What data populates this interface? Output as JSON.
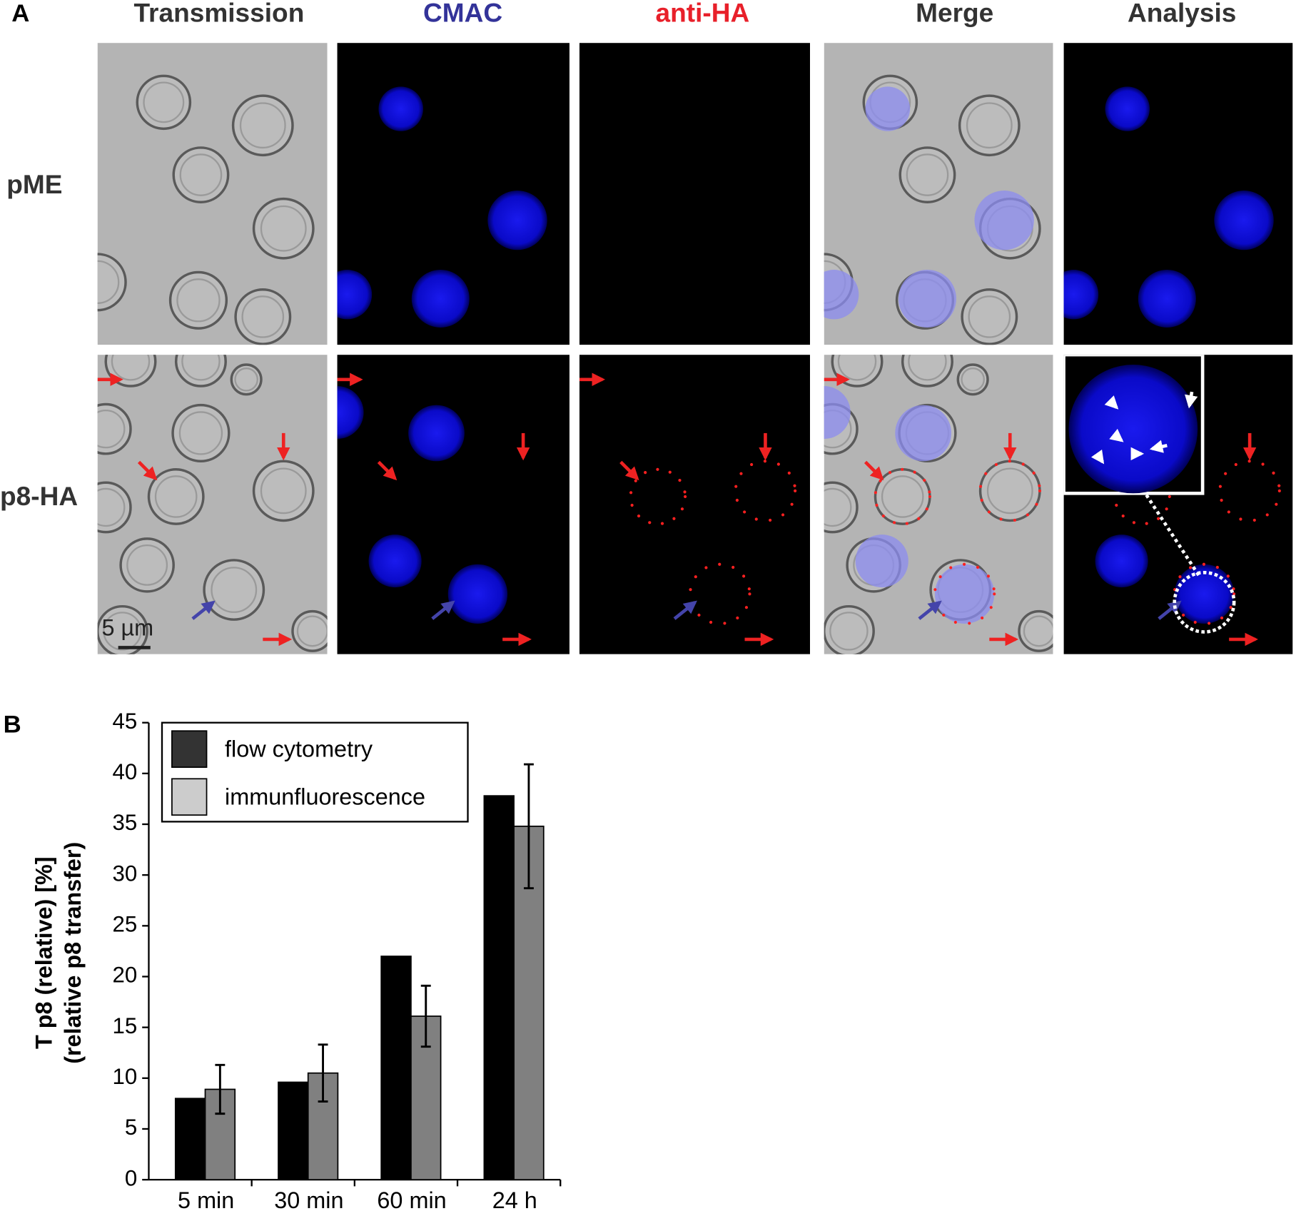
{
  "panel_a": {
    "label": "A",
    "columns": [
      "Transmission",
      "CMAC",
      "anti-HA",
      "Merge",
      "Analysis"
    ],
    "rows": [
      "pME",
      "p8-HA"
    ],
    "scale_bar": "5 µm"
  },
  "chart_data": {
    "type": "bar",
    "label": "B",
    "ylabel": [
      "T p8 (relative) [%]",
      "(relative p8 transfer)"
    ],
    "categories": [
      "5 min",
      "30 min",
      "60 min",
      "24 h"
    ],
    "series": [
      {
        "name": "flow cytometry",
        "color": "#000000",
        "legend_color": "#333333",
        "values": [
          8.0,
          9.6,
          22.0,
          37.8
        ]
      },
      {
        "name": "immunfluorescence",
        "color": "#808080",
        "legend_color": "#cccccc",
        "values": [
          8.9,
          10.5,
          16.1,
          34.8
        ],
        "errors": [
          2.4,
          2.8,
          3.0,
          6.1
        ]
      }
    ],
    "ylim": [
      0,
      45
    ],
    "yticks": [
      0,
      5,
      10,
      15,
      20,
      25,
      30,
      35,
      40,
      45
    ],
    "legend": "upper left"
  }
}
